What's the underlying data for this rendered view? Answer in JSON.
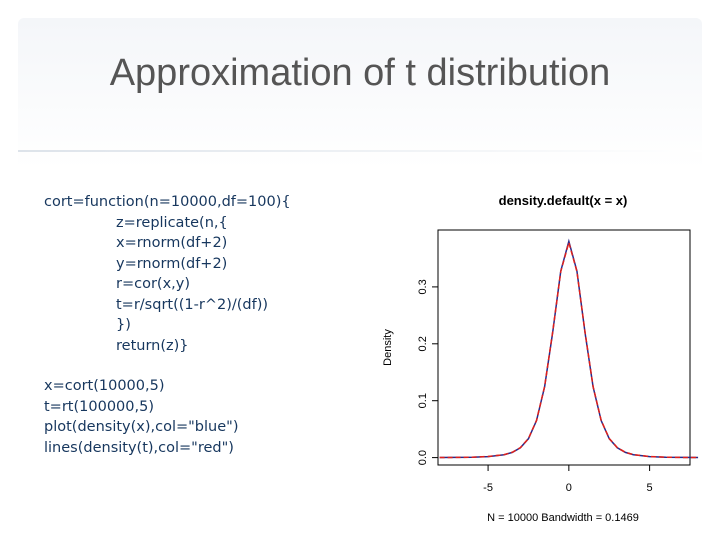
{
  "slide": {
    "title": "Approximation of t distribution",
    "function_block": {
      "header": "cort=function(n=10000,df=100){",
      "body": [
        "z=replicate(n,{",
        "x=rnorm(df+2)",
        "y=rnorm(df+2)",
        "r=cor(x,y)",
        "t=r/sqrt((1-r^2)/(df))",
        "})",
        "return(z)}"
      ]
    },
    "calls": [
      "x=cort(10000,5)",
      "t=rt(100000,5)",
      "plot(density(x),col=\"blue\")",
      "lines(density(t),col=\"red\")"
    ]
  },
  "chart_data": {
    "type": "line",
    "title": "density.default(x = x)",
    "y_label": "Density",
    "x_label": "N = 10000   Bandwidth = 0.1469",
    "x": [
      -8,
      -7,
      -6,
      -5,
      -4,
      -3.5,
      -3,
      -2.5,
      -2,
      -1.5,
      -1,
      -0.5,
      0,
      0.5,
      1,
      1.5,
      2,
      2.5,
      3,
      3.5,
      4,
      5,
      6,
      7,
      8
    ],
    "series": [
      {
        "color": "#2a2a8a",
        "values": [
          0.0001,
          0.0003,
          0.0007,
          0.0018,
          0.0051,
          0.0092,
          0.0173,
          0.0333,
          0.0651,
          0.1245,
          0.22,
          0.328,
          0.38,
          0.328,
          0.22,
          0.1245,
          0.0651,
          0.0333,
          0.0173,
          0.0092,
          0.0051,
          0.0018,
          0.0007,
          0.0003,
          0.0001
        ]
      },
      {
        "color": "#e0201a",
        "linestyle": "dashed",
        "values": [
          0.0001,
          0.0003,
          0.0007,
          0.0019,
          0.0052,
          0.0093,
          0.0175,
          0.0335,
          0.0655,
          0.125,
          0.221,
          0.327,
          0.378,
          0.327,
          0.221,
          0.125,
          0.0655,
          0.0335,
          0.0175,
          0.0093,
          0.0052,
          0.0019,
          0.0007,
          0.0003,
          0.0001
        ]
      }
    ],
    "xlim": [
      -8.1,
      7.5
    ],
    "ylim": [
      -0.013,
      0.4
    ],
    "xticks": [
      -5,
      0,
      5
    ],
    "yticks": [
      {
        "value": 0,
        "label": "0.0"
      },
      0.1,
      0.2,
      0.3
    ]
  }
}
